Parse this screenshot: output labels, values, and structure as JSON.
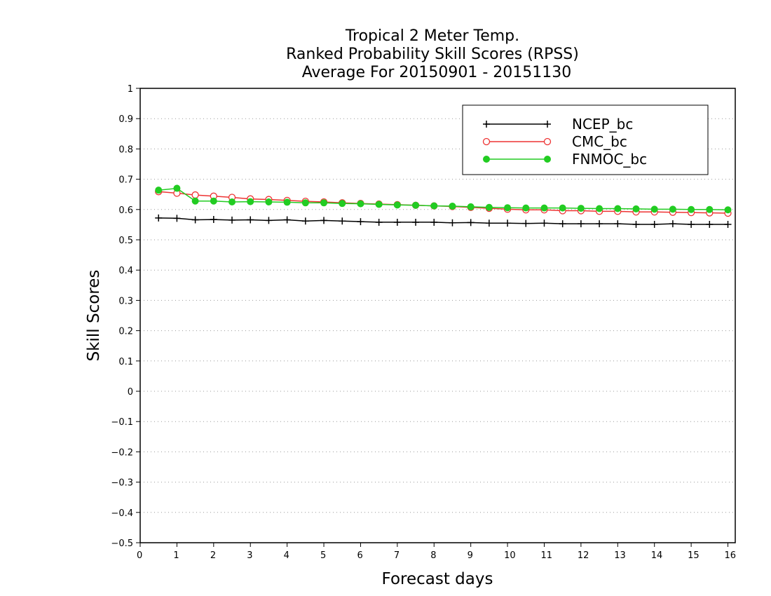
{
  "chart_data": {
    "type": "line",
    "title_lines": [
      "Tropical 2 Meter Temp.",
      "Ranked Probability Skill Scores (RPSS)",
      "Average For 20150901 - 20151130"
    ],
    "xlabel": "Forecast days",
    "ylabel": "Skill Scores",
    "xlim": [
      0,
      16.2
    ],
    "ylim": [
      -0.5,
      1
    ],
    "x_ticks": [
      "0",
      "1",
      "2",
      "3",
      "4",
      "5",
      "6",
      "7",
      "8",
      "9",
      "10",
      "11",
      "12",
      "13",
      "14",
      "15",
      "16"
    ],
    "y_ticks": [
      "1",
      "0.9",
      "0.8",
      "0.7",
      "0.6",
      "0.5",
      "0.4",
      "0.3",
      "0.2",
      "0.1",
      "0",
      "−0.1",
      "−0.2",
      "−0.3",
      "−0.4",
      "−0.5"
    ],
    "grid": "horizontal dotted",
    "legend_position": "top-right",
    "x": [
      0.5,
      1.0,
      1.5,
      2.0,
      2.5,
      3.0,
      3.5,
      4.0,
      4.5,
      5.0,
      5.5,
      6.0,
      6.5,
      7.0,
      7.5,
      8.0,
      8.5,
      9.0,
      9.5,
      10.0,
      10.5,
      11.0,
      11.5,
      12.0,
      12.5,
      13.0,
      13.5,
      14.0,
      14.5,
      15.0,
      15.5,
      16.0
    ],
    "series": [
      {
        "name": "NCEP_bc",
        "color": "#000000",
        "marker": "plus",
        "values": [
          0.572,
          0.571,
          0.566,
          0.567,
          0.565,
          0.566,
          0.564,
          0.566,
          0.562,
          0.564,
          0.562,
          0.56,
          0.558,
          0.558,
          0.558,
          0.558,
          0.556,
          0.557,
          0.555,
          0.555,
          0.554,
          0.555,
          0.553,
          0.553,
          0.553,
          0.553,
          0.551,
          0.551,
          0.553,
          0.551,
          0.551,
          0.551
        ]
      },
      {
        "name": "CMC_bc",
        "color": "#ee3333",
        "marker": "open-circle",
        "values": [
          0.659,
          0.654,
          0.648,
          0.644,
          0.64,
          0.635,
          0.633,
          0.63,
          0.627,
          0.625,
          0.622,
          0.62,
          0.618,
          0.616,
          0.614,
          0.612,
          0.61,
          0.607,
          0.604,
          0.601,
          0.599,
          0.599,
          0.596,
          0.596,
          0.594,
          0.594,
          0.592,
          0.592,
          0.591,
          0.59,
          0.589,
          0.588
        ]
      },
      {
        "name": "FNMOC_bc",
        "color": "#22cc22",
        "marker": "filled-circle",
        "values": [
          0.664,
          0.67,
          0.628,
          0.628,
          0.625,
          0.626,
          0.625,
          0.624,
          0.622,
          0.622,
          0.62,
          0.619,
          0.617,
          0.615,
          0.614,
          0.612,
          0.611,
          0.609,
          0.607,
          0.606,
          0.605,
          0.605,
          0.605,
          0.604,
          0.603,
          0.603,
          0.602,
          0.601,
          0.601,
          0.6,
          0.6,
          0.599
        ]
      }
    ]
  }
}
